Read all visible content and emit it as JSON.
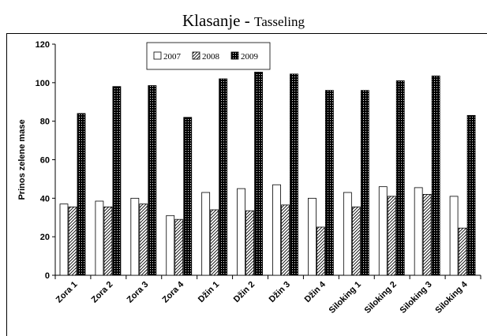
{
  "page": {
    "title_main": "Klasanje",
    "title_sep": " - ",
    "title_sub": "Tasseling"
  },
  "chart_data": {
    "type": "bar",
    "title": "Klasanje - Tasseling",
    "xlabel": "",
    "ylabel": "Prinos zelene mase",
    "ylim": [
      0,
      120
    ],
    "yticks": [
      0,
      20,
      40,
      60,
      80,
      100,
      120
    ],
    "grid": false,
    "legend_position": "top-left",
    "categories": [
      "Zora 1",
      "Zora 2",
      "Zora 3",
      "Zora 4",
      "Džin 1",
      "Džin 2",
      "Džin 3",
      "Džin 4",
      "Siloking 1",
      "Siloking 2",
      "Siloking 3",
      "Siloking 4"
    ],
    "series": [
      {
        "name": "2007",
        "pattern": "white",
        "values": [
          37,
          38.5,
          40,
          31,
          43,
          45,
          47,
          40,
          43,
          46,
          45.5,
          41
        ]
      },
      {
        "name": "2008",
        "pattern": "hatch",
        "values": [
          35.5,
          35.5,
          37,
          29,
          34,
          33.5,
          36.5,
          25,
          35.5,
          41,
          42,
          24.5
        ]
      },
      {
        "name": "2009",
        "pattern": "dots",
        "values": [
          84,
          98,
          98.5,
          82,
          102,
          105.5,
          104.5,
          96,
          96,
          101,
          103.5,
          83
        ]
      }
    ]
  }
}
